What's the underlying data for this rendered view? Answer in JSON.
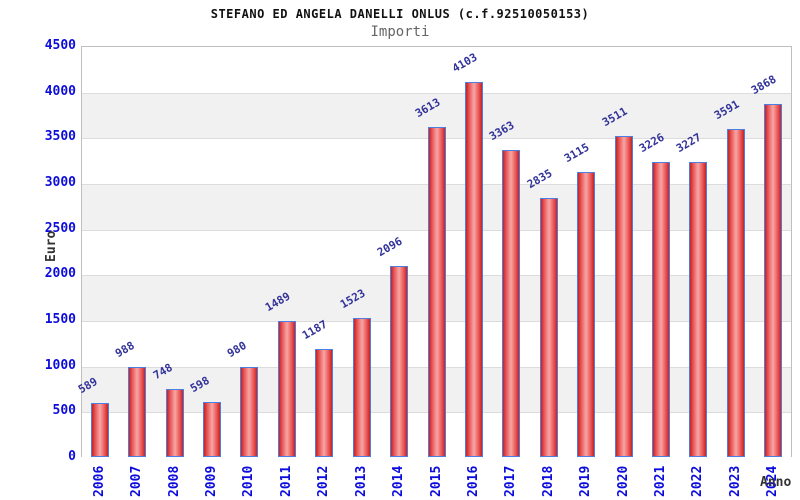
{
  "chart_data": {
    "type": "bar",
    "title": "STEFANO ED ANGELA DANELLI ONLUS (c.f.92510050153)",
    "subtitle": "Importi",
    "xlabel": "Anno",
    "ylabel": "Euro",
    "categories": [
      "2006",
      "2007",
      "2008",
      "2009",
      "2010",
      "2011",
      "2012",
      "2013",
      "2014",
      "2015",
      "2016",
      "2017",
      "2018",
      "2019",
      "2020",
      "2021",
      "2022",
      "2023",
      "2024"
    ],
    "values": [
      589,
      988,
      748,
      598,
      980,
      1489,
      1187,
      1523,
      2096,
      3613,
      4103,
      3363,
      2835,
      3115,
      3511,
      3226,
      3227,
      3591,
      3868
    ],
    "ylim": [
      0,
      4500
    ],
    "yticks": [
      0,
      500,
      1000,
      1500,
      2000,
      2500,
      3000,
      3500,
      4000,
      4500
    ],
    "legend": "none",
    "grid": "alternating-horizontal-bands",
    "value_label_rotation_deg": -30,
    "category_label_rotation_deg": -90,
    "colors": {
      "bar_edge": "#c62222",
      "bar_mid": "#ea5a5a",
      "bar_center": "#f8a6a6",
      "bar_border": "#4d7fe3",
      "axis_tick_labels": "#0c0cdd",
      "value_labels": "#333399",
      "axis_titles": "#333333",
      "band_gray": "#f1f1f1",
      "gridline": "#dcdcdc",
      "plot_border": "#bfbfbf",
      "title_color": "#111111",
      "subtitle_color": "#666666"
    }
  }
}
